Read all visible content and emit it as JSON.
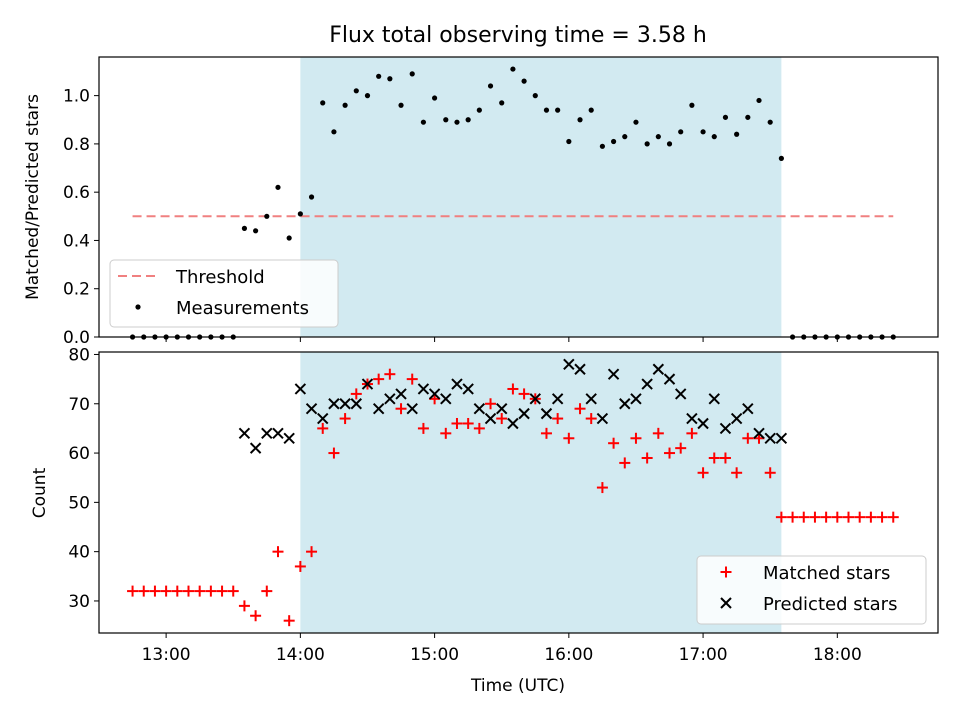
{
  "chart_data": [
    {
      "type": "scatter",
      "title": "Flux total observing time = 3.58 h",
      "xlabel": "",
      "ylabel": "Matched/Predicted stars",
      "xlim": [
        "12:30",
        "18:45"
      ],
      "ylim": [
        0,
        1.16
      ],
      "xticks": [
        "13:00",
        "14:00",
        "15:00",
        "16:00",
        "17:00",
        "18:00"
      ],
      "yticks": [
        0.0,
        0.2,
        0.4,
        0.6,
        0.8,
        1.0
      ],
      "ytick_labels": [
        "0.0",
        "0.2",
        "0.4",
        "0.6",
        "0.8",
        "1.0"
      ],
      "shaded_span": [
        "14:00",
        "17:35"
      ],
      "threshold": {
        "name": "Threshold",
        "value": 0.5,
        "x_from": "12:45",
        "x_to": "18:25",
        "color": "#f08080"
      },
      "series": [
        {
          "name": "Measurements",
          "color": "#000000",
          "points": [
            [
              "12:45",
              0
            ],
            [
              "12:50",
              0
            ],
            [
              "12:55",
              0
            ],
            [
              "13:00",
              0
            ],
            [
              "13:05",
              0
            ],
            [
              "13:10",
              0
            ],
            [
              "13:15",
              0
            ],
            [
              "13:20",
              0
            ],
            [
              "13:25",
              0
            ],
            [
              "13:30",
              0
            ],
            [
              "13:35",
              0.45
            ],
            [
              "13:40",
              0.44
            ],
            [
              "13:45",
              0.5
            ],
            [
              "13:50",
              0.62
            ],
            [
              "13:55",
              0.41
            ],
            [
              "14:00",
              0.51
            ],
            [
              "14:05",
              0.58
            ],
            [
              "14:10",
              0.97
            ],
            [
              "14:15",
              0.85
            ],
            [
              "14:20",
              0.96
            ],
            [
              "14:25",
              1.02
            ],
            [
              "14:30",
              1.0
            ],
            [
              "14:35",
              1.08
            ],
            [
              "14:40",
              1.07
            ],
            [
              "14:45",
              0.96
            ],
            [
              "14:50",
              1.09
            ],
            [
              "14:55",
              0.89
            ],
            [
              "15:00",
              0.99
            ],
            [
              "15:05",
              0.9
            ],
            [
              "15:10",
              0.89
            ],
            [
              "15:15",
              0.9
            ],
            [
              "15:20",
              0.94
            ],
            [
              "15:25",
              1.04
            ],
            [
              "15:30",
              0.97
            ],
            [
              "15:35",
              1.11
            ],
            [
              "15:40",
              1.06
            ],
            [
              "15:45",
              1.0
            ],
            [
              "15:50",
              0.94
            ],
            [
              "15:55",
              0.94
            ],
            [
              "16:00",
              0.81
            ],
            [
              "16:05",
              0.9
            ],
            [
              "16:10",
              0.94
            ],
            [
              "16:15",
              0.79
            ],
            [
              "16:20",
              0.81
            ],
            [
              "16:25",
              0.83
            ],
            [
              "16:30",
              0.89
            ],
            [
              "16:35",
              0.8
            ],
            [
              "16:40",
              0.83
            ],
            [
              "16:45",
              0.8
            ],
            [
              "16:50",
              0.85
            ],
            [
              "16:55",
              0.96
            ],
            [
              "17:00",
              0.85
            ],
            [
              "17:05",
              0.83
            ],
            [
              "17:10",
              0.91
            ],
            [
              "17:15",
              0.84
            ],
            [
              "17:20",
              0.91
            ],
            [
              "17:25",
              0.98
            ],
            [
              "17:30",
              0.89
            ],
            [
              "17:35",
              0.74
            ],
            [
              "17:40",
              0
            ],
            [
              "17:45",
              0
            ],
            [
              "17:50",
              0
            ],
            [
              "17:55",
              0
            ],
            [
              "18:00",
              0
            ],
            [
              "18:05",
              0
            ],
            [
              "18:10",
              0
            ],
            [
              "18:15",
              0
            ],
            [
              "18:20",
              0
            ],
            [
              "18:25",
              0
            ]
          ]
        }
      ],
      "legend": {
        "placement": "lower-left",
        "entries": [
          "Threshold",
          "Measurements"
        ]
      }
    },
    {
      "type": "scatter",
      "title": "",
      "xlabel": "Time (UTC)",
      "ylabel": "Count",
      "xlim": [
        "12:30",
        "18:45"
      ],
      "ylim": [
        23.5,
        80.5
      ],
      "xticks": [
        "13:00",
        "14:00",
        "15:00",
        "16:00",
        "17:00",
        "18:00"
      ],
      "yticks": [
        30,
        40,
        50,
        60,
        70,
        80
      ],
      "shaded_span": [
        "14:00",
        "17:35"
      ],
      "series": [
        {
          "name": "Matched stars",
          "color": "#ff0000",
          "marker": "plus",
          "points": [
            [
              "12:45",
              32
            ],
            [
              "12:50",
              32
            ],
            [
              "12:55",
              32
            ],
            [
              "13:00",
              32
            ],
            [
              "13:05",
              32
            ],
            [
              "13:10",
              32
            ],
            [
              "13:15",
              32
            ],
            [
              "13:20",
              32
            ],
            [
              "13:25",
              32
            ],
            [
              "13:30",
              32
            ],
            [
              "13:35",
              29
            ],
            [
              "13:40",
              27
            ],
            [
              "13:45",
              32
            ],
            [
              "13:50",
              40
            ],
            [
              "13:55",
              26
            ],
            [
              "14:00",
              37
            ],
            [
              "14:05",
              40
            ],
            [
              "14:10",
              65
            ],
            [
              "14:15",
              60
            ],
            [
              "14:20",
              67
            ],
            [
              "14:25",
              72
            ],
            [
              "14:30",
              74
            ],
            [
              "14:35",
              75
            ],
            [
              "14:40",
              76
            ],
            [
              "14:45",
              69
            ],
            [
              "14:50",
              75
            ],
            [
              "14:55",
              65
            ],
            [
              "15:00",
              71
            ],
            [
              "15:05",
              64
            ],
            [
              "15:10",
              66
            ],
            [
              "15:15",
              66
            ],
            [
              "15:20",
              65
            ],
            [
              "15:25",
              70
            ],
            [
              "15:30",
              67
            ],
            [
              "15:35",
              73
            ],
            [
              "15:40",
              72
            ],
            [
              "15:45",
              71
            ],
            [
              "15:50",
              64
            ],
            [
              "15:55",
              67
            ],
            [
              "16:00",
              63
            ],
            [
              "16:05",
              69
            ],
            [
              "16:10",
              67
            ],
            [
              "16:15",
              53
            ],
            [
              "16:20",
              62
            ],
            [
              "16:25",
              58
            ],
            [
              "16:30",
              63
            ],
            [
              "16:35",
              59
            ],
            [
              "16:40",
              64
            ],
            [
              "16:45",
              60
            ],
            [
              "16:50",
              61
            ],
            [
              "16:55",
              64
            ],
            [
              "17:00",
              56
            ],
            [
              "17:05",
              59
            ],
            [
              "17:10",
              59
            ],
            [
              "17:15",
              56
            ],
            [
              "17:20",
              63
            ],
            [
              "17:25",
              63
            ],
            [
              "17:30",
              56
            ],
            [
              "17:35",
              47
            ],
            [
              "17:40",
              47
            ],
            [
              "17:45",
              47
            ],
            [
              "17:50",
              47
            ],
            [
              "17:55",
              47
            ],
            [
              "18:00",
              47
            ],
            [
              "18:05",
              47
            ],
            [
              "18:10",
              47
            ],
            [
              "18:15",
              47
            ],
            [
              "18:20",
              47
            ],
            [
              "18:25",
              47
            ]
          ]
        },
        {
          "name": "Predicted stars",
          "color": "#000000",
          "marker": "x",
          "points": [
            [
              "13:35",
              64
            ],
            [
              "13:40",
              61
            ],
            [
              "13:45",
              64
            ],
            [
              "13:50",
              64
            ],
            [
              "13:55",
              63
            ],
            [
              "14:00",
              73
            ],
            [
              "14:05",
              69
            ],
            [
              "14:10",
              67
            ],
            [
              "14:15",
              70
            ],
            [
              "14:20",
              70
            ],
            [
              "14:25",
              70
            ],
            [
              "14:30",
              74
            ],
            [
              "14:35",
              69
            ],
            [
              "14:40",
              71
            ],
            [
              "14:45",
              72
            ],
            [
              "14:50",
              69
            ],
            [
              "14:55",
              73
            ],
            [
              "15:00",
              72
            ],
            [
              "15:05",
              71
            ],
            [
              "15:10",
              74
            ],
            [
              "15:15",
              73
            ],
            [
              "15:20",
              69
            ],
            [
              "15:25",
              67
            ],
            [
              "15:30",
              69
            ],
            [
              "15:35",
              66
            ],
            [
              "15:40",
              68
            ],
            [
              "15:45",
              71
            ],
            [
              "15:50",
              68
            ],
            [
              "15:55",
              71
            ],
            [
              "16:00",
              78
            ],
            [
              "16:05",
              77
            ],
            [
              "16:10",
              71
            ],
            [
              "16:15",
              67
            ],
            [
              "16:20",
              76
            ],
            [
              "16:25",
              70
            ],
            [
              "16:30",
              71
            ],
            [
              "16:35",
              74
            ],
            [
              "16:40",
              77
            ],
            [
              "16:45",
              75
            ],
            [
              "16:50",
              72
            ],
            [
              "16:55",
              67
            ],
            [
              "17:00",
              66
            ],
            [
              "17:05",
              71
            ],
            [
              "17:10",
              65
            ],
            [
              "17:15",
              67
            ],
            [
              "17:20",
              69
            ],
            [
              "17:25",
              64
            ],
            [
              "17:30",
              63
            ],
            [
              "17:35",
              63
            ]
          ]
        }
      ],
      "legend": {
        "placement": "lower-right",
        "entries": [
          "Matched stars",
          "Predicted stars"
        ]
      }
    }
  ],
  "colors": {
    "span": "#add8e6",
    "threshold": "#f08080",
    "matched": "#ff0000",
    "predicted": "#000000",
    "measurements": "#000000"
  }
}
